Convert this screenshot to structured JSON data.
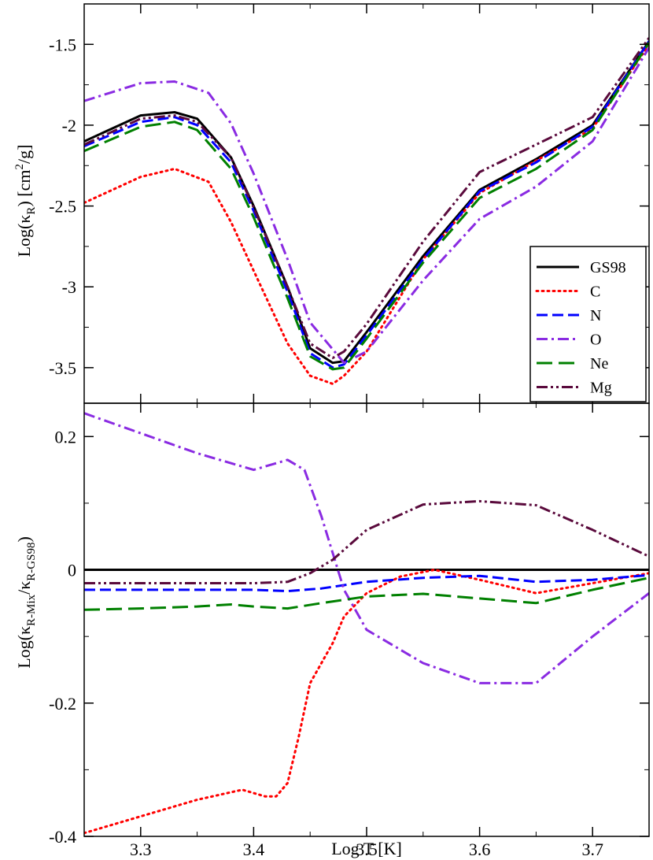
{
  "chart_data": [
    {
      "type": "line",
      "id": "top",
      "xlabel": "",
      "ylabel": {
        "main": "Log(κ",
        "sub": "R",
        "mid": ") [cm",
        "sup": "2",
        "end": "/g]"
      },
      "xlim": [
        3.25,
        3.75
      ],
      "ylim": [
        -3.72,
        -1.25
      ],
      "xticks": [
        3.3,
        3.4,
        3.5,
        3.6,
        3.7
      ],
      "yticks": [
        -1.5,
        -2,
        -2.5,
        -3,
        -3.5
      ],
      "ytick_labels": [
        "-1.5",
        "-2",
        "-2.5",
        "-3",
        "-3.5"
      ],
      "legend": {
        "position": "right",
        "entries": [
          "GS98",
          "C",
          "N",
          "O",
          "Ne",
          "Mg"
        ]
      },
      "series": [
        {
          "name": "GS98",
          "color": "#000000",
          "style": "solid",
          "x": [
            3.25,
            3.3,
            3.33,
            3.35,
            3.38,
            3.4,
            3.43,
            3.45,
            3.47,
            3.48,
            3.5,
            3.55,
            3.6,
            3.65,
            3.7,
            3.75
          ],
          "y": [
            -2.1,
            -1.94,
            -1.92,
            -1.96,
            -2.2,
            -2.5,
            -3.0,
            -3.38,
            -3.47,
            -3.46,
            -3.28,
            -2.81,
            -2.4,
            -2.21,
            -2.0,
            -1.48
          ]
        },
        {
          "name": "C",
          "color": "#ff0000",
          "style": "dotted",
          "x": [
            3.25,
            3.3,
            3.33,
            3.36,
            3.38,
            3.4,
            3.43,
            3.45,
            3.47,
            3.48,
            3.5,
            3.55,
            3.6,
            3.65,
            3.7,
            3.75
          ],
          "y": [
            -2.48,
            -2.32,
            -2.27,
            -2.35,
            -2.6,
            -2.9,
            -3.35,
            -3.55,
            -3.6,
            -3.55,
            -3.4,
            -2.83,
            -2.42,
            -2.22,
            -2.02,
            -1.5
          ]
        },
        {
          "name": "N",
          "color": "#0000ff",
          "style": "dashed",
          "x": [
            3.25,
            3.3,
            3.33,
            3.35,
            3.38,
            3.4,
            3.43,
            3.45,
            3.47,
            3.48,
            3.5,
            3.55,
            3.6,
            3.65,
            3.7,
            3.75
          ],
          "y": [
            -2.13,
            -1.98,
            -1.95,
            -2.0,
            -2.23,
            -2.53,
            -3.03,
            -3.41,
            -3.5,
            -3.48,
            -3.3,
            -2.83,
            -2.41,
            -2.23,
            -2.01,
            -1.48
          ]
        },
        {
          "name": "O",
          "color": "#8a2be2",
          "style": "dashdot",
          "x": [
            3.25,
            3.3,
            3.33,
            3.36,
            3.38,
            3.4,
            3.43,
            3.45,
            3.48,
            3.5,
            3.55,
            3.6,
            3.65,
            3.7,
            3.75
          ],
          "y": [
            -1.85,
            -1.74,
            -1.73,
            -1.8,
            -1.99,
            -2.3,
            -2.83,
            -3.22,
            -3.47,
            -3.4,
            -2.96,
            -2.58,
            -2.38,
            -2.1,
            -1.52
          ]
        },
        {
          "name": "Ne",
          "color": "#008000",
          "style": "longdash",
          "x": [
            3.25,
            3.3,
            3.33,
            3.35,
            3.38,
            3.4,
            3.43,
            3.45,
            3.47,
            3.48,
            3.5,
            3.55,
            3.6,
            3.65,
            3.7,
            3.75
          ],
          "y": [
            -2.16,
            -2.01,
            -1.98,
            -2.03,
            -2.27,
            -2.57,
            -3.07,
            -3.43,
            -3.51,
            -3.5,
            -3.32,
            -2.85,
            -2.45,
            -2.27,
            -2.03,
            -1.49
          ]
        },
        {
          "name": "Mg",
          "color": "#5a0a3c",
          "style": "dashdotdot",
          "x": [
            3.25,
            3.3,
            3.33,
            3.35,
            3.38,
            3.4,
            3.43,
            3.45,
            3.47,
            3.48,
            3.5,
            3.55,
            3.6,
            3.65,
            3.7,
            3.75
          ],
          "y": [
            -2.12,
            -1.96,
            -1.94,
            -1.98,
            -2.2,
            -2.51,
            -3.0,
            -3.35,
            -3.44,
            -3.4,
            -3.23,
            -2.72,
            -2.29,
            -2.12,
            -1.95,
            -1.46
          ]
        }
      ]
    },
    {
      "type": "line",
      "id": "bottom",
      "xlabel": "Log T [K]",
      "ylabel": {
        "main": "Log(κ",
        "sub": "R-Mix",
        "mid": "/κ",
        "sub2": "R-GS98",
        "end": ")"
      },
      "xlim": [
        3.25,
        3.75
      ],
      "ylim": [
        -0.4,
        0.25
      ],
      "xticks": [
        3.3,
        3.4,
        3.5,
        3.6,
        3.7
      ],
      "xtick_labels": [
        "3.3",
        "3.4",
        "3.5",
        "3.6",
        "3.7"
      ],
      "yticks": [
        0.2,
        0,
        -0.2,
        -0.4
      ],
      "ytick_labels": [
        "0.2",
        "0",
        "-0.2",
        "-0.4"
      ],
      "series": [
        {
          "name": "GS98",
          "color": "#000000",
          "style": "solid",
          "x": [
            3.25,
            3.75
          ],
          "y": [
            0,
            0
          ]
        },
        {
          "name": "C",
          "color": "#ff0000",
          "style": "dotted",
          "x": [
            3.25,
            3.3,
            3.35,
            3.39,
            3.41,
            3.42,
            3.43,
            3.44,
            3.45,
            3.47,
            3.48,
            3.5,
            3.53,
            3.56,
            3.6,
            3.65,
            3.7,
            3.75
          ],
          "y": [
            -0.395,
            -0.37,
            -0.345,
            -0.33,
            -0.34,
            -0.34,
            -0.32,
            -0.25,
            -0.17,
            -0.11,
            -0.07,
            -0.035,
            -0.01,
            0.0,
            -0.015,
            -0.035,
            -0.02,
            -0.005
          ]
        },
        {
          "name": "N",
          "color": "#0000ff",
          "style": "dashed",
          "x": [
            3.25,
            3.3,
            3.35,
            3.4,
            3.43,
            3.46,
            3.5,
            3.55,
            3.6,
            3.65,
            3.7,
            3.75
          ],
          "y": [
            -0.03,
            -0.03,
            -0.03,
            -0.03,
            -0.032,
            -0.028,
            -0.018,
            -0.012,
            -0.009,
            -0.018,
            -0.015,
            -0.008
          ]
        },
        {
          "name": "O",
          "color": "#8a2be2",
          "style": "dashdot",
          "x": [
            3.25,
            3.3,
            3.35,
            3.4,
            3.43,
            3.445,
            3.46,
            3.48,
            3.5,
            3.55,
            3.6,
            3.65,
            3.7,
            3.75
          ],
          "y": [
            0.235,
            0.205,
            0.175,
            0.15,
            0.165,
            0.15,
            0.08,
            -0.03,
            -0.09,
            -0.14,
            -0.17,
            -0.17,
            -0.1,
            -0.035
          ]
        },
        {
          "name": "Ne",
          "color": "#008000",
          "style": "longdash",
          "x": [
            3.25,
            3.3,
            3.35,
            3.38,
            3.4,
            3.43,
            3.46,
            3.5,
            3.55,
            3.6,
            3.65,
            3.7,
            3.75
          ],
          "y": [
            -0.06,
            -0.058,
            -0.055,
            -0.052,
            -0.055,
            -0.058,
            -0.05,
            -0.04,
            -0.036,
            -0.043,
            -0.05,
            -0.03,
            -0.012
          ]
        },
        {
          "name": "Mg",
          "color": "#5a0a3c",
          "style": "dashdotdot",
          "x": [
            3.25,
            3.3,
            3.35,
            3.4,
            3.43,
            3.45,
            3.47,
            3.5,
            3.55,
            3.6,
            3.65,
            3.7,
            3.75
          ],
          "y": [
            -0.02,
            -0.02,
            -0.02,
            -0.02,
            -0.018,
            -0.005,
            0.015,
            0.06,
            0.098,
            0.103,
            0.097,
            0.06,
            0.02
          ]
        }
      ]
    }
  ]
}
